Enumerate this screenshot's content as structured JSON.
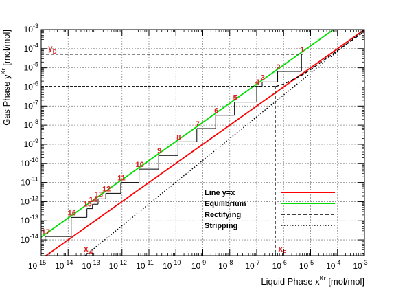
{
  "chart_data": {
    "type": "line",
    "title": "",
    "xlabel": "Liquid Phase x",
    "xlabel_sup": "Kr",
    "xlabel_unit": " [mol/mol]",
    "ylabel": "Gas Phase y",
    "ylabel_sup": "Kr",
    "ylabel_unit": " [mol/mol]",
    "xscale": "log",
    "yscale": "log",
    "xlim": [
      1e-15,
      0.001
    ],
    "ylim": [
      1.5e-15,
      0.001
    ],
    "grid": true,
    "x_ticks": [
      {
        "base": "10",
        "exp": "-15",
        "value": 1e-15
      },
      {
        "base": "10",
        "exp": "-14",
        "value": 1e-14
      },
      {
        "base": "10",
        "exp": "-13",
        "value": 1e-13
      },
      {
        "base": "10",
        "exp": "-12",
        "value": 1e-12
      },
      {
        "base": "10",
        "exp": "-11",
        "value": 1e-11
      },
      {
        "base": "10",
        "exp": "-10",
        "value": 1e-10
      },
      {
        "base": "10",
        "exp": "-9",
        "value": 1e-09
      },
      {
        "base": "10",
        "exp": "-8",
        "value": 1e-08
      },
      {
        "base": "10",
        "exp": "-7",
        "value": 1e-07
      },
      {
        "base": "10",
        "exp": "-6",
        "value": 1e-06
      },
      {
        "base": "10",
        "exp": "-5",
        "value": 1e-05
      },
      {
        "base": "10",
        "exp": "-4",
        "value": 0.0001
      },
      {
        "base": "10",
        "exp": "-3",
        "value": 0.001
      }
    ],
    "y_ticks": [
      {
        "base": "10",
        "exp": "-14",
        "value": 1e-14
      },
      {
        "base": "10",
        "exp": "-13",
        "value": 1e-13
      },
      {
        "base": "10",
        "exp": "-12",
        "value": 1e-12
      },
      {
        "base": "10",
        "exp": "-11",
        "value": 1e-11
      },
      {
        "base": "10",
        "exp": "-10",
        "value": 1e-10
      },
      {
        "base": "10",
        "exp": "-9",
        "value": 1e-09
      },
      {
        "base": "10",
        "exp": "-8",
        "value": 1e-08
      },
      {
        "base": "10",
        "exp": "-7",
        "value": 1e-07
      },
      {
        "base": "10",
        "exp": "-6",
        "value": 1e-06
      },
      {
        "base": "10",
        "exp": "-5",
        "value": 1e-05
      },
      {
        "base": "10",
        "exp": "-4",
        "value": 0.0001
      },
      {
        "base": "10",
        "exp": "-3",
        "value": 0.001
      }
    ],
    "legend": {
      "placement": "bottom-right",
      "entries": [
        {
          "name": "Line y=x",
          "color": "#ff0000",
          "style": "solid"
        },
        {
          "name": "Equilibrium",
          "color": "#00dd00",
          "style": "solid"
        },
        {
          "name": "Rectifying",
          "color": "#000000",
          "style": "dashed"
        },
        {
          "name": "Stripping",
          "color": "#000000",
          "style": "dotted"
        }
      ]
    },
    "series": [
      {
        "name": "Line y=x",
        "color": "#ff0000",
        "style": "solid",
        "x": [
          1e-15,
          0.001
        ],
        "y": [
          1e-15,
          0.001
        ]
      },
      {
        "name": "Equilibrium",
        "color": "#00dd00",
        "style": "solid",
        "x": [
          1e-15,
          0.0001
        ],
        "y": [
          1.4e-14,
          0.0014
        ]
      },
      {
        "name": "Rectifying",
        "color": "#000000",
        "style": "dashed",
        "x": [
          5e-07,
          1e-06,
          5e-06,
          1e-05,
          0.0001,
          0.001
        ],
        "y": [
          1.05e-06,
          1.4e-06,
          4.3e-06,
          8e-06,
          8e-05,
          0.0008
        ]
      },
      {
        "name": "Stripping",
        "color": "#000000",
        "style": "dotted",
        "x": [
          3e-14,
          0.001
        ],
        "y": [
          1e-15,
          0.001
        ]
      }
    ],
    "stages": [
      "1",
      "2",
      "3",
      "4",
      "5",
      "6",
      "7",
      "8",
      "9",
      "10",
      "11",
      "12",
      "13",
      "14",
      "15",
      "16",
      "17"
    ],
    "stage_points": [
      {
        "x": 4.6e-06,
        "y": 5e-05
      },
      {
        "x": 6e-07,
        "y": 6.4e-06
      },
      {
        "x": 1.6e-07,
        "y": 1.8e-06
      },
      {
        "x": 1e-07,
        "y": 1.06e-06
      },
      {
        "x": 1.5e-08,
        "y": 1.6e-07
      },
      {
        "x": 3e-09,
        "y": 3.3e-08
      },
      {
        "x": 6e-10,
        "y": 6.7e-09
      },
      {
        "x": 1.2e-10,
        "y": 1.35e-09
      },
      {
        "x": 2.3e-11,
        "y": 2.6e-10
      },
      {
        "x": 4.3e-12,
        "y": 5e-11
      },
      {
        "x": 9e-13,
        "y": 1e-11
      },
      {
        "x": 2.5e-13,
        "y": 2.7e-12
      },
      {
        "x": 1.3e-13,
        "y": 1.4e-12
      },
      {
        "x": 8e-14,
        "y": 7.3e-13
      },
      {
        "x": 5e-14,
        "y": 4.3e-13
      },
      {
        "x": 1.3e-14,
        "y": 1.5e-13
      },
      {
        "x": 1.4e-15,
        "y": 1.5e-14
      }
    ],
    "annotations": {
      "yD": {
        "letter": "y",
        "sub": "D",
        "value": 5e-05
      },
      "xW": {
        "letter": "x",
        "sub": "W",
        "value": 3e-14
      },
      "xF": {
        "letter": "x",
        "sub": "F",
        "value": 5e-07
      },
      "feed_y": 1.05e-06
    }
  }
}
